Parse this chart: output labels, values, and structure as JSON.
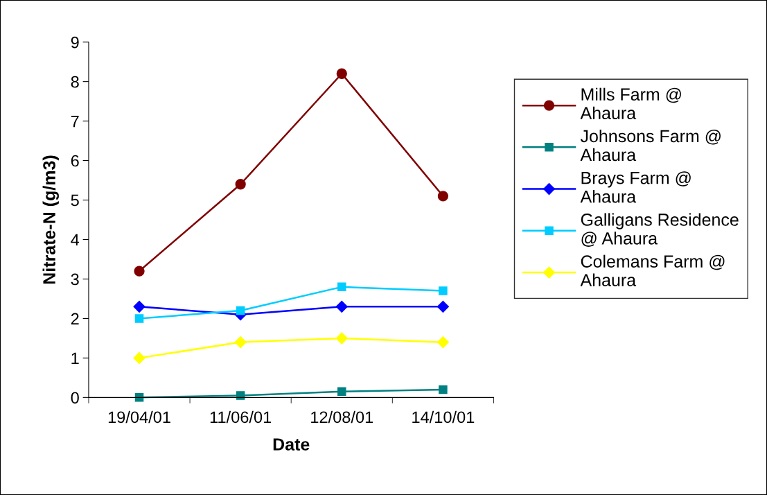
{
  "chart_data": {
    "type": "line",
    "xlabel": "Date",
    "ylabel": "Nitrate-N (g/m3)",
    "categories": [
      "19/04/01",
      "11/06/01",
      "12/08/01",
      "14/10/01"
    ],
    "ylim": [
      0,
      9
    ],
    "yticks": [
      0,
      1,
      2,
      3,
      4,
      5,
      6,
      7,
      8,
      9
    ],
    "grid": false,
    "legend": "right",
    "series": [
      {
        "name": "Mills Farm @\nAhaura",
        "color": "#800000",
        "marker": "circle",
        "values": [
          3.2,
          5.4,
          8.2,
          5.1
        ]
      },
      {
        "name": "Johnsons Farm @\nAhaura",
        "color": "#008080",
        "marker": "square",
        "values": [
          0,
          0.05,
          0.15,
          0.2
        ]
      },
      {
        "name": "Brays Farm @\nAhaura",
        "color": "#0000ff",
        "marker": "diamond",
        "values": [
          2.3,
          2.1,
          2.3,
          2.3
        ]
      },
      {
        "name": "Galligans Residence\n@ Ahaura",
        "color": "#00ccff",
        "marker": "square",
        "values": [
          2.0,
          2.2,
          2.8,
          2.7
        ]
      },
      {
        "name": "Colemans Farm @\nAhaura",
        "color": "#ffff00",
        "marker": "diamond",
        "values": [
          1.0,
          1.4,
          1.5,
          1.4
        ]
      }
    ]
  }
}
